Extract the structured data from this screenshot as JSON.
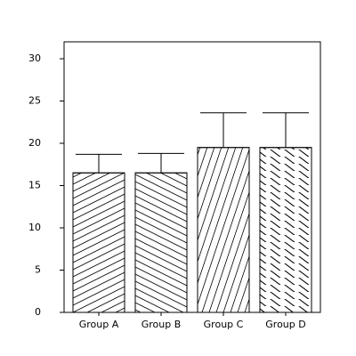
{
  "chart_data": {
    "type": "bar",
    "categories": [
      "Group A",
      "Group B",
      "Group C",
      "Group D"
    ],
    "values": [
      16.5,
      16.5,
      19.5,
      19.5
    ],
    "errors": [
      2.2,
      2.3,
      4.1,
      4.1
    ],
    "color": "#ffffff",
    "ylim": [
      0,
      32
    ],
    "yticks": [
      0,
      5,
      10,
      15,
      20,
      25,
      30
    ],
    "grid": false
  }
}
